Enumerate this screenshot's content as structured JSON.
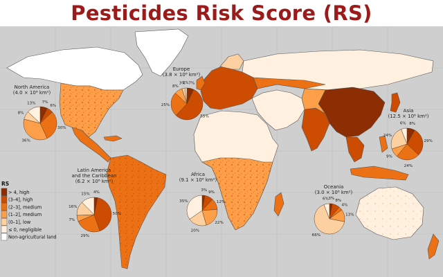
{
  "title": "Pesticides Risk Score (RS)",
  "colors": {
    "title": "#9b1b1b",
    "ocean": "#cfcfcf",
    "high4": "#8c2d04",
    "high34": "#cc4c02",
    "medium23": "#ec7014",
    "medium12": "#fd9f48",
    "low01": "#fdd0a2",
    "negligible": "#fff0df",
    "non_agricultural": "#ffffff"
  },
  "legend": {
    "title": "RS",
    "items": [
      {
        "label": "> 4, high",
        "key": "high4"
      },
      {
        "label": "(3–4], high",
        "key": "high34"
      },
      {
        "label": "(2–3], medium",
        "key": "medium23"
      },
      {
        "label": "(1–2], medium",
        "key": "medium12"
      },
      {
        "label": "(0–1], low",
        "key": "low01"
      },
      {
        "label": "≤ 0, negligible",
        "key": "negligible"
      },
      {
        "label": "Non-agricultural land",
        "key": "non_agricultural"
      }
    ]
  },
  "regions": [
    {
      "id": "north-america",
      "name": "North America",
      "area": "(4.0 × 10⁶ km²)",
      "shares": [
        {
          "key": "high4",
          "value": 7
        },
        {
          "key": "high34",
          "value": 6
        },
        {
          "key": "medium23",
          "value": 30
        },
        {
          "key": "medium12",
          "value": 36
        },
        {
          "key": "low01",
          "value": 8
        },
        {
          "key": "negligible",
          "value": 13
        }
      ],
      "labels": [
        "7%",
        "6%",
        "30%",
        "36%",
        "8%",
        "13%"
      ]
    },
    {
      "id": "europe",
      "name": "Europe",
      "area": "(3.8 × 10⁶ km²)",
      "shares": [
        {
          "key": "high4",
          "value": 7
        },
        {
          "key": "high34",
          "value": 55
        },
        {
          "key": "medium23",
          "value": 25
        },
        {
          "key": "medium12",
          "value": 8
        },
        {
          "key": "low01",
          "value": 3
        },
        {
          "key": "negligible",
          "value": 2
        }
      ],
      "labels": [
        "7%",
        "55%",
        "25%",
        "8%",
        "3%",
        "2%"
      ]
    },
    {
      "id": "asia",
      "name": "Asia",
      "area": "(12.5 × 10⁶ km²)",
      "shares": [
        {
          "key": "high4",
          "value": 8
        },
        {
          "key": "high34",
          "value": 29
        },
        {
          "key": "medium23",
          "value": 24
        },
        {
          "key": "medium12",
          "value": 9
        },
        {
          "key": "low01",
          "value": 24
        },
        {
          "key": "negligible",
          "value": 6
        }
      ],
      "labels": [
        "8%",
        "29%",
        "24%",
        "9%",
        "24%",
        "6%"
      ]
    },
    {
      "id": "latin-america",
      "name": "Latin America and the Caribbean",
      "area": "(6.2 × 10⁶ km²)",
      "shares": [
        {
          "key": "high4",
          "value": 4
        },
        {
          "key": "high34",
          "value": 50
        },
        {
          "key": "medium23",
          "value": 29
        },
        {
          "key": "medium12",
          "value": 7
        },
        {
          "key": "low01",
          "value": 16
        },
        {
          "key": "negligible",
          "value": 15
        }
      ],
      "labels": [
        "4%",
        "50%",
        "29%",
        "7%",
        "16%",
        "15%"
      ]
    },
    {
      "id": "africa",
      "name": "Africa",
      "area": "(9.1 × 10⁶ km²)",
      "shares": [
        {
          "key": "high4",
          "value": 3
        },
        {
          "key": "high34",
          "value": 9
        },
        {
          "key": "medium23",
          "value": 12
        },
        {
          "key": "medium12",
          "value": 22
        },
        {
          "key": "low01",
          "value": 20
        },
        {
          "key": "negligible",
          "value": 35
        }
      ],
      "labels": [
        "3%",
        "9%",
        "12%",
        "22%",
        "20%",
        "35%"
      ]
    },
    {
      "id": "oceania",
      "name": "Oceania",
      "area": "(3.0 × 10⁶ km²)",
      "shares": [
        {
          "key": "high4",
          "value": 3
        },
        {
          "key": "high34",
          "value": 8
        },
        {
          "key": "medium23",
          "value": 4
        },
        {
          "key": "medium12",
          "value": 13
        },
        {
          "key": "low01",
          "value": 66
        },
        {
          "key": "negligible",
          "value": 6
        }
      ],
      "labels": [
        "3%",
        "8%",
        "4%",
        "13%",
        "66%",
        "6%"
      ]
    }
  ]
}
